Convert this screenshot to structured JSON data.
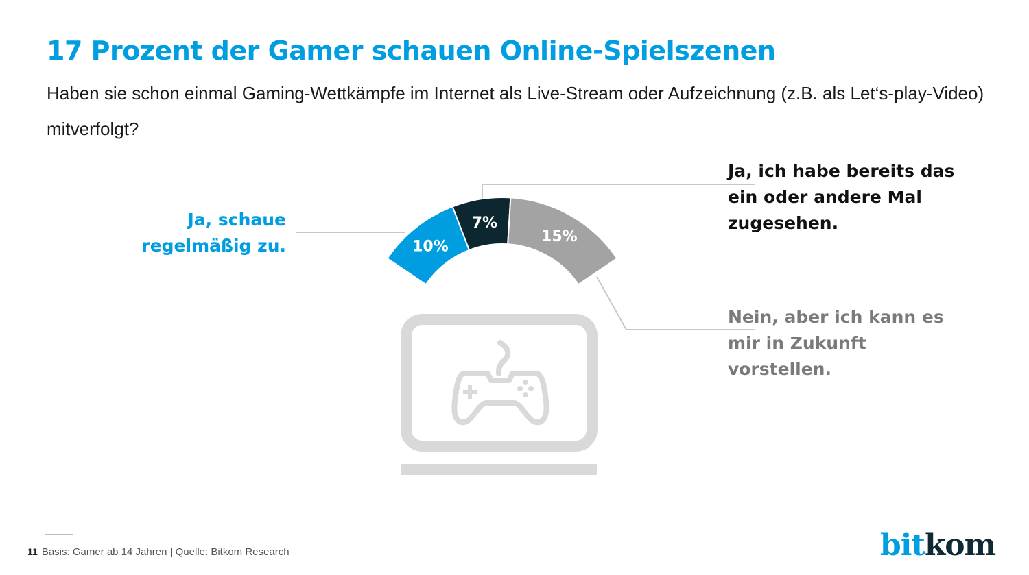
{
  "header": {
    "title": "17 Prozent der Gamer schauen Online-Spielszenen",
    "subtitle": "Haben sie schon einmal Gaming-Wettkämpfe im Internet als Live-Stream oder Aufzeichnung (z.B. als Let‘s-play-Video) mitverfolgt?"
  },
  "chart_data": {
    "type": "pie",
    "variant": "semi-donut-arc",
    "title": "17 Prozent der Gamer schauen Online-Spielszenen",
    "categories": [
      "Ja, schaue regelmäßig zu.",
      "Ja, ich habe bereits das ein oder andere Mal zugesehen.",
      "Nein, aber ich kann es mir in Zukunft vorstellen."
    ],
    "values": [
      10,
      7,
      15
    ],
    "unit": "%",
    "data_labels": [
      "10%",
      "7%",
      "15%"
    ],
    "colors": [
      "#009ee0",
      "#0d2730",
      "#a3a3a3"
    ],
    "label_colors": [
      "#009ee0",
      "#111111",
      "#7a7a7a"
    ]
  },
  "labels": {
    "left": [
      "Ja, schaue",
      "regelmäßig zu."
    ],
    "right_top": [
      "Ja, ich habe bereits das",
      "ein oder andere Mal",
      "zugesehen."
    ],
    "right_bottom": [
      "Nein, aber ich kann es",
      "mir in Zukunft",
      "vorstellen."
    ]
  },
  "icon": "gamepad-on-laptop-icon",
  "footer": {
    "page_number": "11",
    "source": "Basis: Gamer ab 14 Jahren | Quelle: Bitkom Research"
  },
  "logo": {
    "part1": "bit",
    "part2": "kom"
  }
}
